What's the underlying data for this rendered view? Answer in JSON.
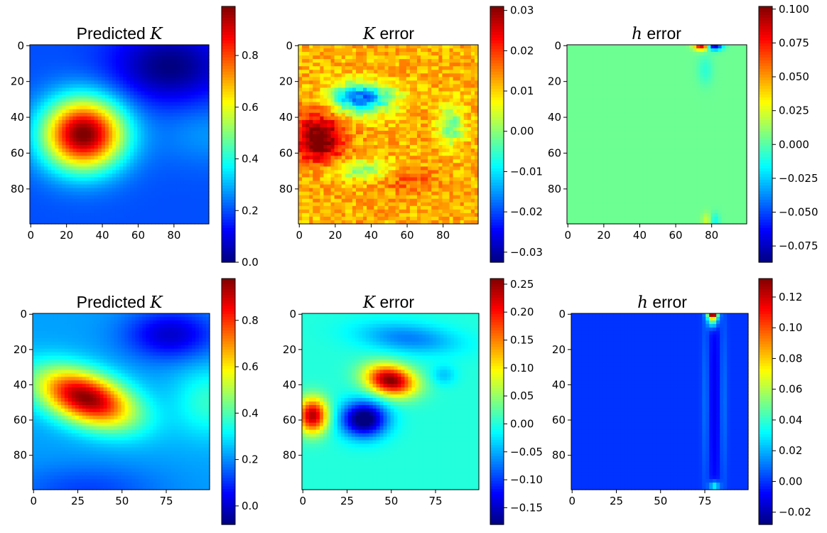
{
  "colormap": [
    "#00007f",
    "#0000ff",
    "#007fff",
    "#00ffff",
    "#7fff7f",
    "#ffff00",
    "#ff7f00",
    "#ff0000",
    "#7f0000"
  ],
  "chart_data": [
    {
      "type": "heatmap",
      "title": "Predicted ",
      "title_math": "K",
      "grid_size": 100,
      "x_ticks": [
        "0",
        "20",
        "40",
        "60",
        "80"
      ],
      "y_ticks": [
        "0",
        "20",
        "40",
        "60",
        "80"
      ],
      "colorbar": {
        "min": 0.0,
        "max": 0.99,
        "ticks": [
          0.0,
          0.2,
          0.4,
          0.6,
          0.8
        ],
        "tick_labels": [
          "0.0",
          "0.2",
          "0.4",
          "0.6",
          "0.8"
        ]
      },
      "description": "Circular high-K blob centered near (x=30, y=50) with peak ~0.99; background ~0.05-0.25",
      "field": {
        "bg": 0.2,
        "blobs": [
          {
            "x": 30,
            "y": 50,
            "sx": 16,
            "sy": 14,
            "a": 0.8
          },
          {
            "x": 100,
            "y": 50,
            "sx": 20,
            "sy": 12,
            "a": 0.07
          },
          {
            "x": 78,
            "y": 12,
            "sx": 22,
            "sy": 14,
            "a": -0.2
          }
        ]
      }
    },
    {
      "type": "heatmap",
      "title": " error",
      "title_math": "K",
      "grid_size": 100,
      "x_ticks": [
        "0",
        "20",
        "40",
        "60",
        "80"
      ],
      "y_ticks": [
        "0",
        "20",
        "40",
        "60",
        "80"
      ],
      "colorbar": {
        "min": -0.0325,
        "max": 0.031,
        "ticks": [
          0.03,
          0.02,
          0.01,
          0.0,
          -0.01,
          -0.02,
          -0.03
        ],
        "tick_labels": [
          "0.03",
          "0.02",
          "0.01",
          "0.00",
          "−0.01",
          "−0.02",
          "−0.03"
        ]
      },
      "description": "Noisy error field: positive patch near (x=10, y=50), negative patch near (x=35, y=30)",
      "field": {
        "bg": 0.012,
        "noise": 0.004,
        "blobs": [
          {
            "x": 12,
            "y": 52,
            "sx": 9,
            "sy": 10,
            "a": 0.022
          },
          {
            "x": 35,
            "y": 30,
            "sx": 12,
            "sy": 6,
            "a": -0.03
          },
          {
            "x": 85,
            "y": 45,
            "sx": 5,
            "sy": 8,
            "a": -0.015
          },
          {
            "x": 35,
            "y": 70,
            "sx": 14,
            "sy": 4,
            "a": -0.012
          },
          {
            "x": 60,
            "y": 75,
            "sx": 12,
            "sy": 5,
            "a": 0.006
          }
        ]
      }
    },
    {
      "type": "heatmap",
      "title": " error",
      "title_math": "h",
      "grid_size": 100,
      "x_ticks": [
        "0",
        "20",
        "40",
        "60",
        "80"
      ],
      "y_ticks": [
        "0",
        "20",
        "40",
        "60",
        "80"
      ],
      "colorbar": {
        "min": -0.087,
        "max": 0.102,
        "ticks": [
          0.1,
          0.075,
          0.05,
          0.025,
          0.0,
          -0.025,
          -0.05,
          -0.075
        ],
        "tick_labels": [
          "0.100",
          "0.075",
          "0.050",
          "0.025",
          "0.000",
          "−0.025",
          "−0.050",
          "−0.075"
        ]
      },
      "description": "Near-zero error everywhere except small positive/negative spots at top edge near x=75-82",
      "field": {
        "bg": 0.004,
        "blobs": [
          {
            "x": 75,
            "y": 0,
            "sx": 3,
            "sy": 2,
            "a": 0.095
          },
          {
            "x": 82,
            "y": 0,
            "sx": 3,
            "sy": 2,
            "a": -0.09
          },
          {
            "x": 77,
            "y": 14,
            "sx": 3,
            "sy": 6,
            "a": -0.012
          },
          {
            "x": 78,
            "y": 98,
            "sx": 2,
            "sy": 3,
            "a": 0.02
          },
          {
            "x": 82,
            "y": 98,
            "sx": 2,
            "sy": 3,
            "a": -0.02
          }
        ]
      }
    },
    {
      "type": "heatmap",
      "title": "Predicted ",
      "title_math": "K",
      "grid_size": 100,
      "x_ticks": [
        "0",
        "25",
        "50",
        "75"
      ],
      "y_ticks": [
        "0",
        "20",
        "40",
        "60",
        "80"
      ],
      "colorbar": {
        "min": -0.08,
        "max": 0.98,
        "ticks": [
          0.8,
          0.6,
          0.4,
          0.2,
          0.0
        ],
        "tick_labels": [
          "0.8",
          "0.6",
          "0.4",
          "0.2",
          "0.0"
        ]
      },
      "description": "Elongated tilted high-K blob centered near (x=30, y=48) with peak ~0.95",
      "field": {
        "bg": 0.22,
        "blobs": [
          {
            "x": 30,
            "y": 48,
            "sx": 20,
            "sy": 10,
            "a": 0.75,
            "rot": -0.35
          },
          {
            "x": 78,
            "y": 12,
            "sx": 18,
            "sy": 10,
            "a": -0.22
          },
          {
            "x": 100,
            "y": 50,
            "sx": 14,
            "sy": 14,
            "a": 0.15
          },
          {
            "x": 30,
            "y": 100,
            "sx": 30,
            "sy": 10,
            "a": -0.1
          }
        ]
      }
    },
    {
      "type": "heatmap",
      "title": " error",
      "title_math": "K",
      "grid_size": 100,
      "x_ticks": [
        "0",
        "25",
        "50",
        "75"
      ],
      "y_ticks": [
        "0",
        "20",
        "40",
        "60",
        "80"
      ],
      "colorbar": {
        "min": -0.18,
        "max": 0.26,
        "ticks": [
          0.25,
          0.2,
          0.15,
          0.1,
          0.05,
          0.0,
          -0.05,
          -0.1,
          -0.15
        ],
        "tick_labels": [
          "0.25",
          "0.20",
          "0.15",
          "0.10",
          "0.05",
          "0.00",
          "−0.05",
          "−0.10",
          "−0.15"
        ]
      },
      "description": "Dipole-like error: strong positive at (50,38), negative at (35,60), positive at (5,58), negative band near top (60,15)",
      "field": {
        "bg": 0.0,
        "blobs": [
          {
            "x": 50,
            "y": 38,
            "sx": 10,
            "sy": 6,
            "a": 0.26,
            "rot": -0.2
          },
          {
            "x": 35,
            "y": 60,
            "sx": 9,
            "sy": 7,
            "a": -0.2
          },
          {
            "x": 6,
            "y": 58,
            "sx": 6,
            "sy": 7,
            "a": 0.24
          },
          {
            "x": 60,
            "y": 14,
            "sx": 20,
            "sy": 6,
            "a": -0.07,
            "rot": -0.1
          },
          {
            "x": 80,
            "y": 35,
            "sx": 5,
            "sy": 4,
            "a": -0.04
          }
        ]
      }
    },
    {
      "type": "heatmap",
      "title": " error",
      "title_math": "h",
      "grid_size": 100,
      "x_ticks": [
        "0",
        "25",
        "50",
        "75"
      ],
      "y_ticks": [
        "0",
        "20",
        "40",
        "60",
        "80"
      ],
      "colorbar": {
        "min": -0.028,
        "max": 0.132,
        "ticks": [
          0.12,
          0.1,
          0.08,
          0.06,
          0.04,
          0.02,
          0.0,
          -0.02
        ],
        "tick_labels": [
          "0.12",
          "0.10",
          "0.08",
          "0.06",
          "0.04",
          "0.02",
          "0.00",
          "−0.02"
        ]
      },
      "description": "Mostly ~0.00 (blue) with vertical structures near x=75-88 and a hot spot at top x=80",
      "field": {
        "bg": 0.0,
        "blobs": [
          {
            "x": 80,
            "y": 0,
            "sx": 2,
            "sy": 2,
            "a": 0.13
          },
          {
            "x": 80,
            "y": 4,
            "sx": 2,
            "sy": 3,
            "a": 0.05
          },
          {
            "x": 81,
            "y": 98,
            "sx": 2,
            "sy": 2,
            "a": 0.04
          },
          {
            "x": 76,
            "y": 50,
            "sx": 1.5,
            "sy": 40,
            "a": 0.012
          },
          {
            "x": 86,
            "y": 50,
            "sx": 1.5,
            "sy": 40,
            "a": 0.012
          },
          {
            "x": 81,
            "y": 50,
            "sx": 3,
            "sy": 50,
            "a": -0.01
          }
        ]
      }
    }
  ]
}
